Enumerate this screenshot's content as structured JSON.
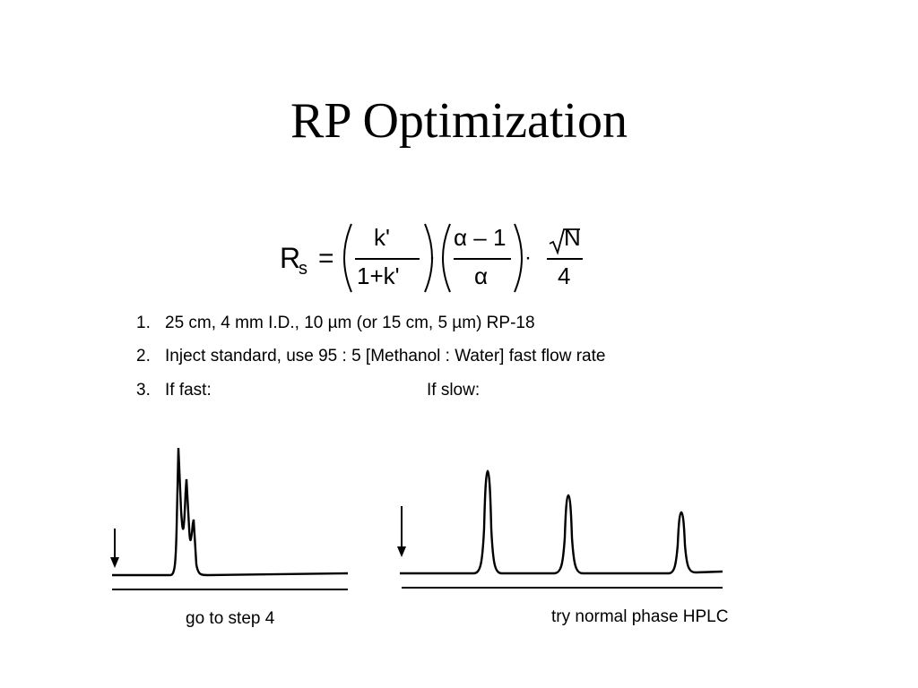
{
  "slide": {
    "title": "RP Optimization"
  },
  "formula": {
    "lhs_R": "R",
    "lhs_sub": "s",
    "equals": "=",
    "term1_numerator": "k'",
    "term1_denominator": "1+k'",
    "dot": "·",
    "term2_numerator": "α – 1",
    "term2_denominator": "α",
    "sqrt_sign": "√",
    "term3_numerator": "N",
    "term3_denominator": "4"
  },
  "steps": [
    {
      "number": "1.",
      "text": "25 cm, 4 mm I.D., 10 µm (or 15 cm, 5 µm) RP-18"
    },
    {
      "number": "2.",
      "text": "Inject standard, use 95 : 5 [Methanol : Water] fast flow rate"
    },
    {
      "number": "3.",
      "text": "If fast:"
    }
  ],
  "if_slow_label": "If slow:",
  "chromatograms": {
    "fast": {
      "caption": "go to step 4",
      "peaks": 3
    },
    "slow": {
      "caption": "try normal phase HPLC",
      "peaks": 3
    }
  }
}
